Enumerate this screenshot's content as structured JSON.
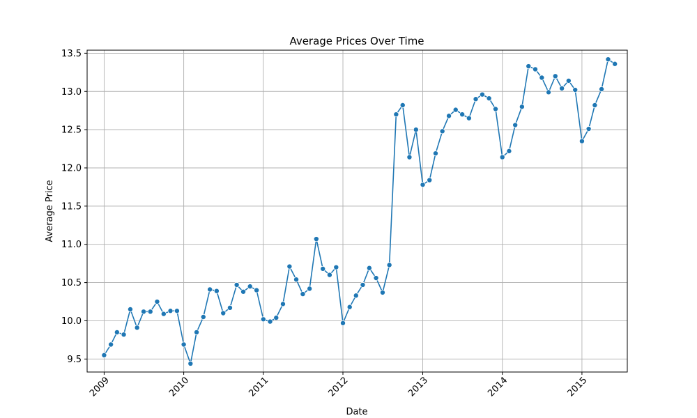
{
  "chart_data": {
    "type": "line",
    "title": "Average Prices Over Time",
    "xlabel": "Date",
    "ylabel": "Average Price",
    "xlim": [
      "2008-10-15",
      "2015-07-28"
    ],
    "ylim": [
      9.33,
      13.54
    ],
    "x_ticks": [
      "2009",
      "2010",
      "2011",
      "2012",
      "2013",
      "2014",
      "2015"
    ],
    "y_ticks": [
      "9.5",
      "10.0",
      "10.5",
      "11.0",
      "11.5",
      "12.0",
      "12.5",
      "13.0",
      "13.5"
    ],
    "grid": true,
    "color": "#1f77b4",
    "series": [
      {
        "x": [
          "2009-01-01",
          "2009-02-01",
          "2009-03-01",
          "2009-04-01",
          "2009-05-01",
          "2009-06-01",
          "2009-07-01",
          "2009-08-01",
          "2009-09-01",
          "2009-10-01",
          "2009-11-01",
          "2009-12-01",
          "2010-01-01",
          "2010-02-01",
          "2010-03-01",
          "2010-04-01",
          "2010-05-01",
          "2010-06-01",
          "2010-07-01",
          "2010-08-01",
          "2010-09-01",
          "2010-10-01",
          "2010-11-01",
          "2010-12-01",
          "2011-01-01",
          "2011-02-01",
          "2011-03-01",
          "2011-04-01",
          "2011-05-01",
          "2011-06-01",
          "2011-07-01",
          "2011-08-01",
          "2011-09-01",
          "2011-10-01",
          "2011-11-01",
          "2011-12-01",
          "2012-01-01",
          "2012-02-01",
          "2012-03-01",
          "2012-04-01",
          "2012-05-01",
          "2012-06-01",
          "2012-07-01",
          "2012-08-01",
          "2012-09-01",
          "2012-10-01",
          "2012-11-01",
          "2012-12-01",
          "2013-01-01",
          "2013-02-01",
          "2013-03-01",
          "2013-04-01",
          "2013-05-01",
          "2013-06-01",
          "2013-07-01",
          "2013-08-01",
          "2013-09-01",
          "2013-10-01",
          "2013-11-01",
          "2013-12-01",
          "2014-01-01",
          "2014-02-01",
          "2014-03-01",
          "2014-04-01",
          "2014-05-01",
          "2014-06-01",
          "2014-07-01",
          "2014-08-01",
          "2014-09-01",
          "2014-10-01",
          "2014-11-01",
          "2014-12-01",
          "2015-01-01",
          "2015-02-01",
          "2015-03-01",
          "2015-04-01",
          "2015-05-01",
          "2015-06-01"
        ],
        "values": [
          9.55,
          9.69,
          9.85,
          9.82,
          10.15,
          9.91,
          10.12,
          10.12,
          10.25,
          10.09,
          10.13,
          10.13,
          9.69,
          9.44,
          9.85,
          10.05,
          10.41,
          10.39,
          10.1,
          10.17,
          10.47,
          10.38,
          10.45,
          10.4,
          10.02,
          9.99,
          10.04,
          10.22,
          10.71,
          10.54,
          10.35,
          10.42,
          11.07,
          10.68,
          10.6,
          10.7,
          9.97,
          10.18,
          10.33,
          10.47,
          10.69,
          10.56,
          10.37,
          10.73,
          12.7,
          12.82,
          12.14,
          12.5,
          11.78,
          11.84,
          12.19,
          12.48,
          12.68,
          12.76,
          12.7,
          12.65,
          12.9,
          12.96,
          12.91,
          12.77,
          12.14,
          12.22,
          12.56,
          12.8,
          13.33,
          13.29,
          13.18,
          12.99,
          13.2,
          13.04,
          13.14,
          13.02,
          12.35,
          12.51,
          12.82,
          13.03,
          13.42,
          13.36
        ]
      }
    ]
  }
}
